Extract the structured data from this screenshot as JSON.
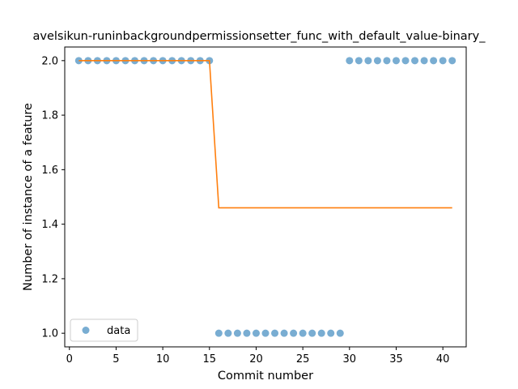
{
  "chart_data": {
    "type": "scatter",
    "title": "avelsikun-runinbackgroundpermissionsetter_func_with_default_value-binary_",
    "xlabel": "Commit number",
    "ylabel": "Number of instance of a feature",
    "xlim": [
      -0.5,
      42.5
    ],
    "ylim": [
      0.95,
      2.05
    ],
    "xticks": [
      0,
      5,
      10,
      15,
      20,
      25,
      30,
      35,
      40
    ],
    "yticks": [
      1.0,
      1.2,
      1.4,
      1.6,
      1.8,
      2.0
    ],
    "xtick_labels": [
      "0",
      "5",
      "10",
      "15",
      "20",
      "25",
      "30",
      "35",
      "40"
    ],
    "ytick_labels": [
      "1.0",
      "1.2",
      "1.4",
      "1.6",
      "1.8",
      "2.0"
    ],
    "grid": false,
    "legend_position": "lower-left",
    "colors": {
      "data": "#1f77b4",
      "fit": "#ff7f0e"
    },
    "series": [
      {
        "name": "data",
        "kind": "markers",
        "x": [
          1,
          2,
          3,
          4,
          5,
          6,
          7,
          8,
          9,
          10,
          11,
          12,
          13,
          14,
          15,
          16,
          17,
          18,
          19,
          20,
          21,
          22,
          23,
          24,
          25,
          26,
          27,
          28,
          29,
          30,
          31,
          32,
          33,
          34,
          35,
          36,
          37,
          38,
          39,
          40,
          41
        ],
        "y": [
          2,
          2,
          2,
          2,
          2,
          2,
          2,
          2,
          2,
          2,
          2,
          2,
          2,
          2,
          2,
          1,
          1,
          1,
          1,
          1,
          1,
          1,
          1,
          1,
          1,
          1,
          1,
          1,
          1,
          2,
          2,
          2,
          2,
          2,
          2,
          2,
          2,
          2,
          2,
          2,
          2
        ]
      },
      {
        "kind": "line",
        "x": [
          1,
          15,
          16,
          41
        ],
        "y": [
          2.0,
          2.0,
          1.46,
          1.46
        ]
      }
    ]
  }
}
